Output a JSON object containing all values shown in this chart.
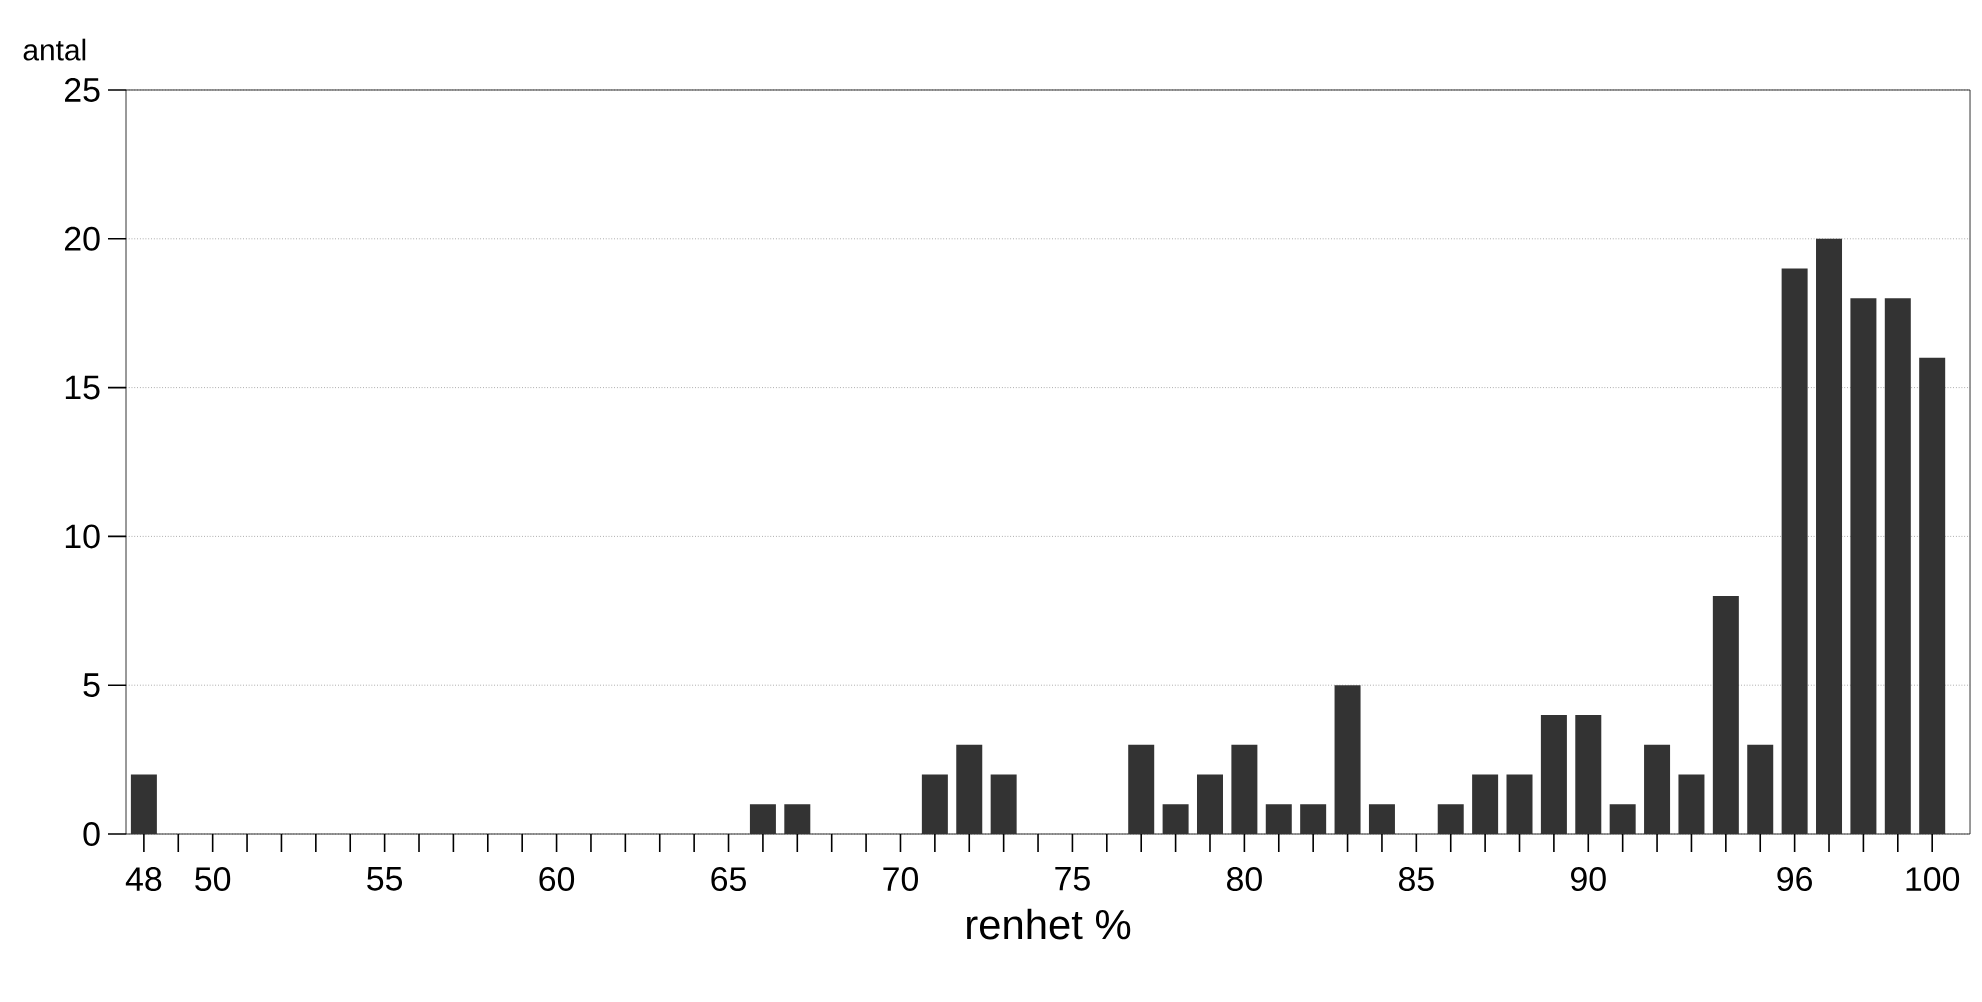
{
  "chart_data": {
    "type": "bar",
    "xlabel": "renhet %",
    "ylabel": "antal",
    "categories": [
      "48",
      null,
      "50",
      null,
      null,
      null,
      null,
      "55",
      null,
      null,
      null,
      null,
      "60",
      null,
      null,
      null,
      null,
      "65",
      null,
      null,
      null,
      null,
      "70",
      null,
      null,
      null,
      null,
      "75",
      null,
      null,
      null,
      null,
      "80",
      null,
      null,
      null,
      null,
      "85",
      null,
      null,
      null,
      null,
      "90",
      null,
      null,
      null,
      null,
      null,
      "96",
      null,
      null,
      null,
      "100"
    ],
    "values": [
      2,
      0,
      0,
      0,
      0,
      0,
      0,
      0,
      0,
      0,
      0,
      0,
      0,
      0,
      0,
      0,
      0,
      0,
      1,
      1,
      0,
      0,
      0,
      2,
      3,
      2,
      0,
      0,
      0,
      3,
      1,
      2,
      3,
      1,
      1,
      5,
      1,
      0,
      1,
      2,
      2,
      4,
      4,
      1,
      3,
      2,
      8,
      3,
      19,
      20,
      18,
      18,
      16
    ],
    "color": "#333333",
    "ylim": [
      0,
      25
    ],
    "yticks": [
      0,
      5,
      10,
      15,
      20,
      25
    ],
    "grid": "y"
  }
}
